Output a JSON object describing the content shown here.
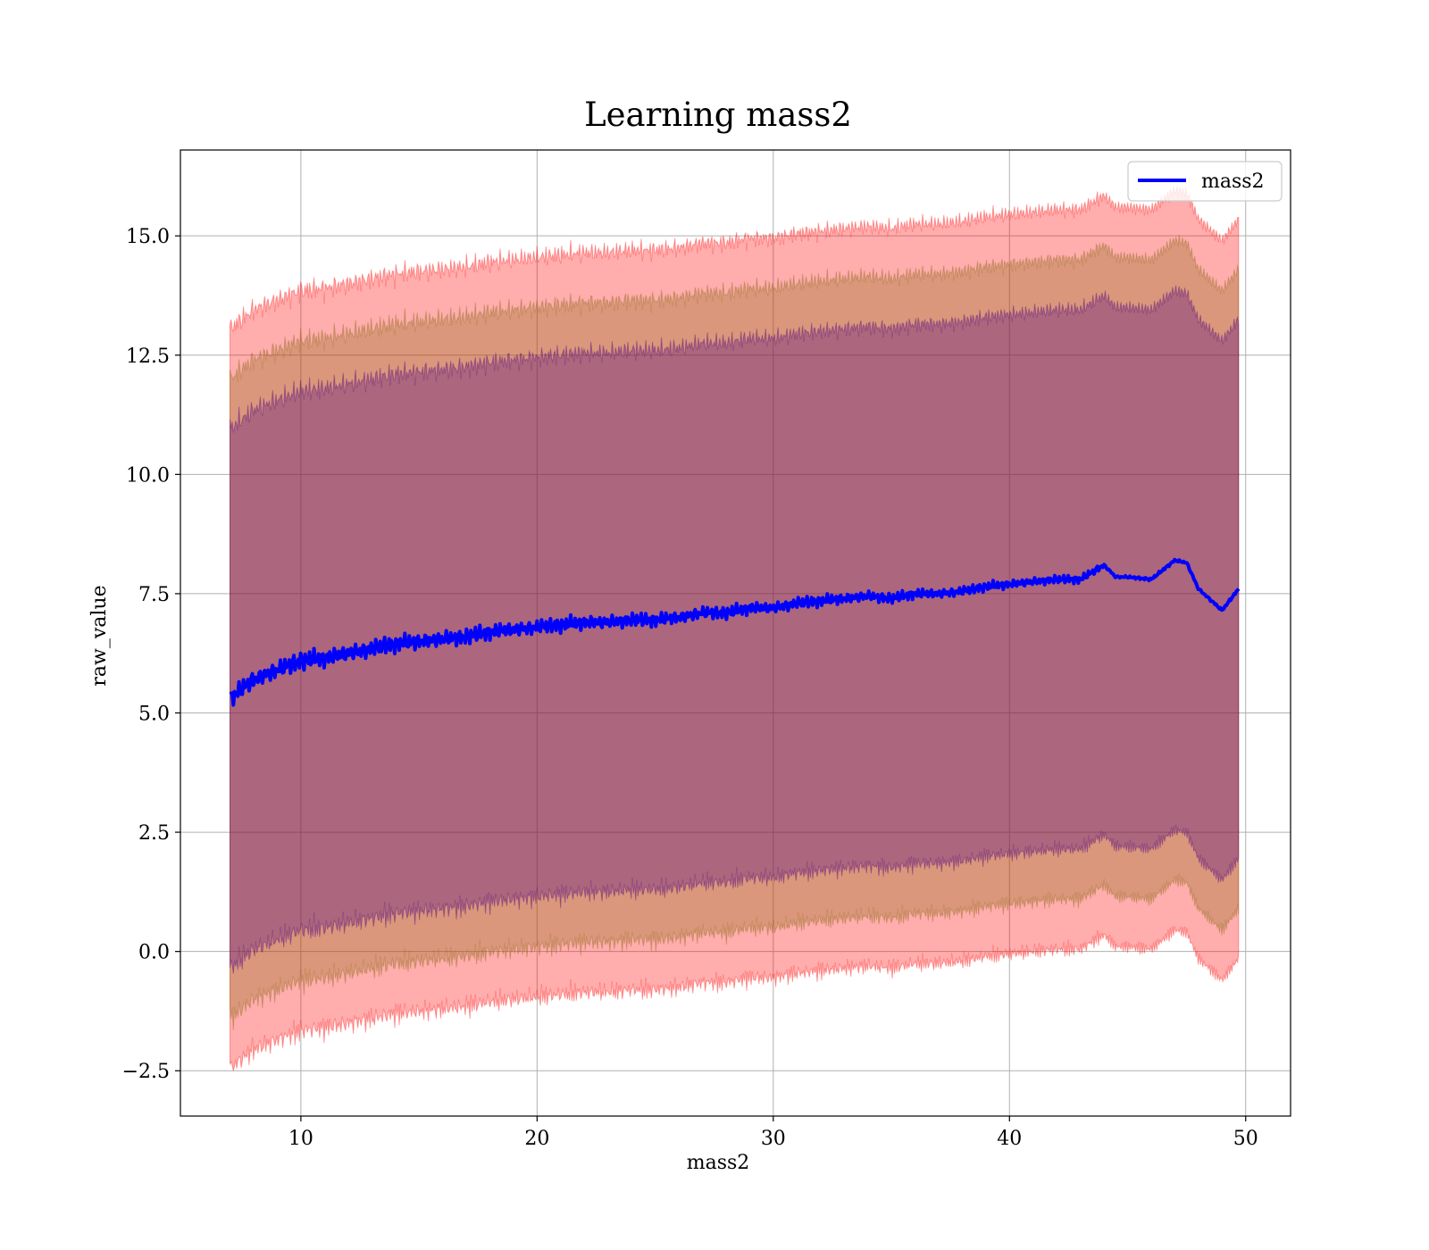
{
  "chart_data": {
    "type": "line",
    "title": "Learning mass2",
    "xlabel": "mass2",
    "ylabel": "raw_value",
    "xlim": [
      4.9,
      51.9
    ],
    "ylim": [
      -3.45,
      16.8
    ],
    "xticks": [
      10,
      20,
      30,
      40,
      50
    ],
    "xtick_labels": [
      "10",
      "20",
      "30",
      "40",
      "50"
    ],
    "yticks": [
      -2.5,
      0.0,
      2.5,
      5.0,
      7.5,
      10.0,
      12.5,
      15.0
    ],
    "ytick_labels": [
      "−2.5",
      "0.0",
      "2.5",
      "5.0",
      "7.5",
      "10.0",
      "12.5",
      "15.0"
    ],
    "grid": true,
    "legend_position": "top-right",
    "x_range": [
      7.0,
      49.7
    ],
    "series": [
      {
        "name": "mass2",
        "color": "#0000ff",
        "x": [
          7,
          8,
          9,
          10,
          11,
          12,
          13,
          14,
          15,
          16,
          17,
          18,
          19,
          20,
          21,
          22,
          23,
          24,
          25,
          26,
          27,
          28,
          29,
          30,
          31,
          32,
          33,
          34,
          35,
          36,
          37,
          38,
          39,
          40,
          41,
          42,
          43,
          44,
          44.5,
          45,
          46,
          47,
          47.5,
          48,
          49,
          49.7
        ],
        "y": [
          5.3,
          5.7,
          5.9,
          6.1,
          6.15,
          6.25,
          6.35,
          6.45,
          6.5,
          6.55,
          6.6,
          6.7,
          6.75,
          6.8,
          6.85,
          6.9,
          6.9,
          6.95,
          6.95,
          7.0,
          7.1,
          7.1,
          7.2,
          7.2,
          7.3,
          7.35,
          7.4,
          7.45,
          7.4,
          7.5,
          7.5,
          7.55,
          7.65,
          7.7,
          7.75,
          7.8,
          7.8,
          8.1,
          7.85,
          7.85,
          7.8,
          8.2,
          8.15,
          7.6,
          7.15,
          7.6
        ]
      }
    ],
    "bands": [
      {
        "name": "",
        "color": "#ff0000",
        "alpha": 0.32,
        "offset_upper": 7.75,
        "offset_lower": 7.75
      },
      {
        "name": "",
        "color": "#8b6914",
        "alpha": 0.32,
        "offset_upper": 6.7,
        "offset_lower": 6.7
      },
      {
        "name": "",
        "color": "#4b0082",
        "alpha": 0.32,
        "offset_upper": 5.65,
        "offset_lower": 5.65
      }
    ]
  }
}
